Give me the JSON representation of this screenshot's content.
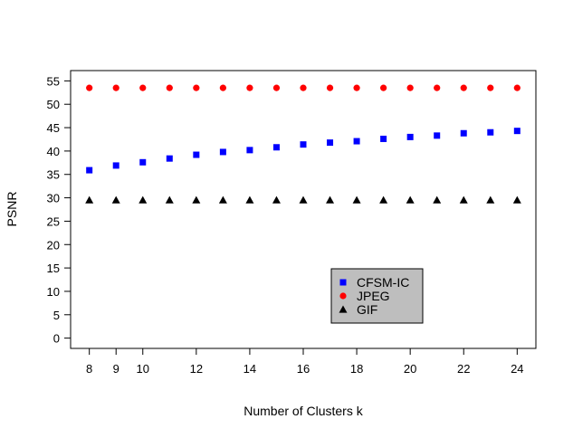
{
  "chart_data": {
    "type": "scatter",
    "title": "",
    "xlabel": "Number of Clusters k",
    "ylabel": "PSNR",
    "xlim": [
      7.3,
      24.7
    ],
    "ylim": [
      -2.2,
      57.2
    ],
    "x_ticks": [
      8,
      9,
      10,
      12,
      14,
      16,
      18,
      20,
      22,
      24
    ],
    "y_ticks": [
      0,
      5,
      10,
      15,
      20,
      25,
      30,
      35,
      40,
      45,
      50,
      55
    ],
    "grid": false,
    "legend_position": "bottom-right",
    "x": [
      8,
      9,
      10,
      11,
      12,
      13,
      14,
      15,
      16,
      17,
      18,
      19,
      20,
      21,
      22,
      23,
      24
    ],
    "series": [
      {
        "name": "CFSM-IC",
        "marker": "square",
        "color": "#0000ff",
        "values": [
          35.9,
          36.9,
          37.6,
          38.4,
          39.2,
          39.8,
          40.2,
          40.8,
          41.4,
          41.8,
          42.1,
          42.6,
          43.0,
          43.3,
          43.8,
          44.0,
          44.3
        ]
      },
      {
        "name": "JPEG",
        "marker": "circle",
        "color": "#ff0000",
        "values": [
          53.5,
          53.5,
          53.5,
          53.5,
          53.5,
          53.5,
          53.5,
          53.5,
          53.5,
          53.5,
          53.5,
          53.5,
          53.5,
          53.5,
          53.5,
          53.5,
          53.5
        ]
      },
      {
        "name": "GIF",
        "marker": "triangle",
        "color": "#000000",
        "values": [
          29.5,
          29.5,
          29.5,
          29.5,
          29.5,
          29.5,
          29.5,
          29.5,
          29.5,
          29.5,
          29.5,
          29.5,
          29.5,
          29.5,
          29.5,
          29.5,
          29.5
        ]
      }
    ],
    "legend_background": "#bebebe"
  }
}
